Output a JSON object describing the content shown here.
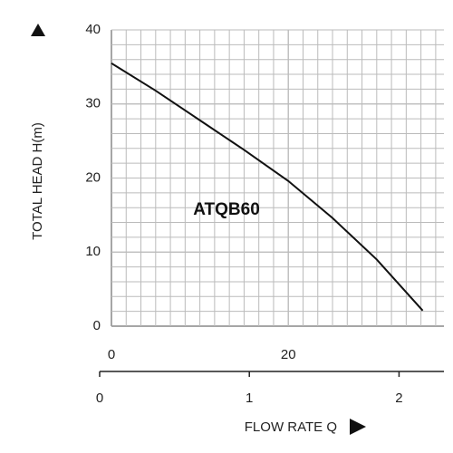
{
  "chart_data": {
    "type": "line",
    "y_label": "TOTAL HEAD H(m)",
    "x_label": "FLOW RATE Q",
    "annotation": "ATQB60",
    "x": [
      0,
      5,
      10,
      15,
      20,
      25,
      30,
      35.2
    ],
    "series": [
      {
        "name": "ATQB60",
        "color": "#111111",
        "values": [
          35.5,
          31.8,
          27.8,
          23.8,
          19.6,
          14.6,
          9.0,
          2.1
        ]
      }
    ],
    "xlim": [
      0,
      37.6
    ],
    "xticks": [
      0,
      20
    ],
    "ylim": [
      0,
      40
    ],
    "yticks": [
      0,
      10,
      20,
      30,
      40
    ],
    "x2lim": [
      0,
      2.3
    ],
    "x2ticks": [
      0,
      1,
      2
    ],
    "grid": true
  }
}
